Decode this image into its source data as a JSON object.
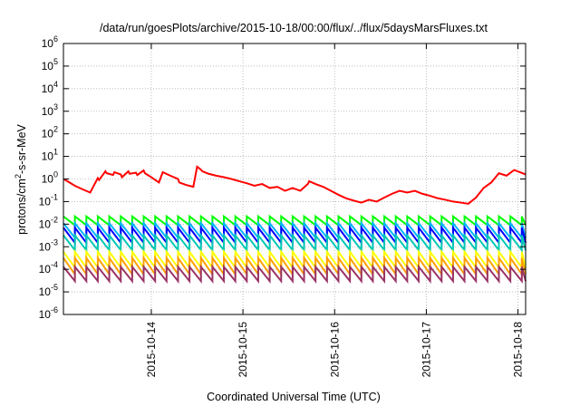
{
  "chart_data": {
    "type": "line",
    "title": "/data/run/goesPlots/archive/2015-10-18/00:00/flux/../flux/5daysMarsFluxes.txt",
    "xlabel": "Coordinated Universal Time (UTC)",
    "ylabel": "protons/cm²-s-sr-MeV",
    "ylabel_parts": {
      "pre": "protons/cm",
      "sup": "2",
      "post": "-s-sr-MeV"
    },
    "yscale": "log",
    "ylim": [
      1e-06,
      1000000.0
    ],
    "xlim": [
      "2015-10-13T01:00",
      "2015-10-18T02:00"
    ],
    "grid": true,
    "y_ticks": [
      {
        "value": 1e-06,
        "base": "10",
        "exp": "-6"
      },
      {
        "value": 1e-05,
        "base": "10",
        "exp": "-5"
      },
      {
        "value": 0.0001,
        "base": "10",
        "exp": "-4"
      },
      {
        "value": 0.001,
        "base": "10",
        "exp": "-3"
      },
      {
        "value": 0.01,
        "base": "10",
        "exp": "-2"
      },
      {
        "value": 0.1,
        "base": "10",
        "exp": "-1"
      },
      {
        "value": 1,
        "base": "10",
        "exp": "0"
      },
      {
        "value": 10,
        "base": "10",
        "exp": "1"
      },
      {
        "value": 100,
        "base": "10",
        "exp": "2"
      },
      {
        "value": 1000,
        "base": "10",
        "exp": "3"
      },
      {
        "value": 10000,
        "base": "10",
        "exp": "4"
      },
      {
        "value": 100000,
        "base": "10",
        "exp": "5"
      },
      {
        "value": 1000000,
        "base": "10",
        "exp": "6"
      }
    ],
    "x_ticks": [
      "2015-10-14",
      "2015-10-15",
      "2015-10-16",
      "2015-10-17",
      "2015-10-18"
    ],
    "series": [
      {
        "color": "#ff0000",
        "x": [
          "2015-10-13T01:00",
          "2015-10-13T02:00",
          "2015-10-13T04:00",
          "2015-10-13T06:00",
          "2015-10-13T08:00",
          "2015-10-13T10:00",
          "2015-10-13T10:20",
          "2015-10-13T12:00",
          "2015-10-13T12:20",
          "2015-10-13T14:00",
          "2015-10-13T14:20",
          "2015-10-13T16:00",
          "2015-10-13T16:20",
          "2015-10-13T18:00",
          "2015-10-13T18:20",
          "2015-10-13T20:00",
          "2015-10-13T20:20",
          "2015-10-13T22:00",
          "2015-10-13T22:20",
          "2015-10-14T00:00",
          "2015-10-14T02:00",
          "2015-10-14T03:00",
          "2015-10-14T05:00",
          "2015-10-14T07:00",
          "2015-10-14T07:20",
          "2015-10-14T09:00",
          "2015-10-14T11:00",
          "2015-10-14T12:00",
          "2015-10-14T13:00",
          "2015-10-14T13:20",
          "2015-10-14T15:00",
          "2015-10-14T17:00",
          "2015-10-14T19:00",
          "2015-10-14T21:00",
          "2015-10-14T23:00",
          "2015-10-15T01:00",
          "2015-10-15T03:00",
          "2015-10-15T05:00",
          "2015-10-15T07:00",
          "2015-10-15T09:00",
          "2015-10-15T11:00",
          "2015-10-15T13:00",
          "2015-10-15T15:00",
          "2015-10-15T17:00",
          "2015-10-15T17:20",
          "2015-10-15T19:00",
          "2015-10-15T21:00",
          "2015-10-15T23:00",
          "2015-10-16T01:00",
          "2015-10-16T03:00",
          "2015-10-16T05:00",
          "2015-10-16T07:00",
          "2015-10-16T09:00",
          "2015-10-16T11:00",
          "2015-10-16T13:00",
          "2015-10-16T15:00",
          "2015-10-16T17:00",
          "2015-10-16T19:00",
          "2015-10-16T21:00",
          "2015-10-16T23:00",
          "2015-10-17T01:00",
          "2015-10-17T03:00",
          "2015-10-17T05:00",
          "2015-10-17T07:00",
          "2015-10-17T09:00",
          "2015-10-17T11:00",
          "2015-10-17T13:00",
          "2015-10-17T15:00",
          "2015-10-17T17:00",
          "2015-10-17T19:00",
          "2015-10-17T21:00",
          "2015-10-17T23:00",
          "2015-10-18T02:00"
        ],
        "y": [
          1.0,
          0.8,
          0.5,
          0.35,
          0.25,
          1.1,
          0.9,
          2.2,
          1.8,
          1.5,
          2.0,
          1.6,
          1.2,
          2.2,
          1.7,
          1.9,
          1.5,
          2.4,
          1.8,
          1.2,
          0.7,
          2.0,
          1.4,
          1.0,
          0.7,
          0.55,
          0.45,
          3.5,
          2.6,
          2.2,
          1.7,
          1.4,
          1.2,
          1.0,
          0.8,
          0.65,
          0.5,
          0.6,
          0.4,
          0.45,
          0.3,
          0.4,
          0.3,
          0.6,
          0.8,
          0.6,
          0.45,
          0.3,
          0.2,
          0.14,
          0.11,
          0.09,
          0.12,
          0.1,
          0.15,
          0.22,
          0.3,
          0.25,
          0.3,
          0.22,
          0.18,
          0.14,
          0.12,
          0.1,
          0.09,
          0.08,
          0.15,
          0.4,
          0.7,
          1.8,
          1.4,
          2.5,
          1.6
        ]
      },
      {
        "color": "#00ff00",
        "period_hours": 3,
        "low": 0.009,
        "high": 0.022
      },
      {
        "color": "#00b4ff",
        "period_hours": 3,
        "low": 0.0025,
        "high": 0.011
      },
      {
        "color": "#0000ff",
        "period_hours": 3,
        "low": 0.0015,
        "high": 0.007
      },
      {
        "color": "#00c8b4",
        "period_hours": 3,
        "low": 0.0007,
        "high": 0.0032
      },
      {
        "color": "#ffff00",
        "period_hours": 3,
        "low": 0.00012,
        "high": 0.0006
      },
      {
        "color": "#ffa000",
        "period_hours": 3,
        "low": 6e-05,
        "high": 0.00032
      },
      {
        "color": "#993366",
        "period_hours": 3,
        "low": 3e-05,
        "high": 0.00013
      }
    ]
  }
}
